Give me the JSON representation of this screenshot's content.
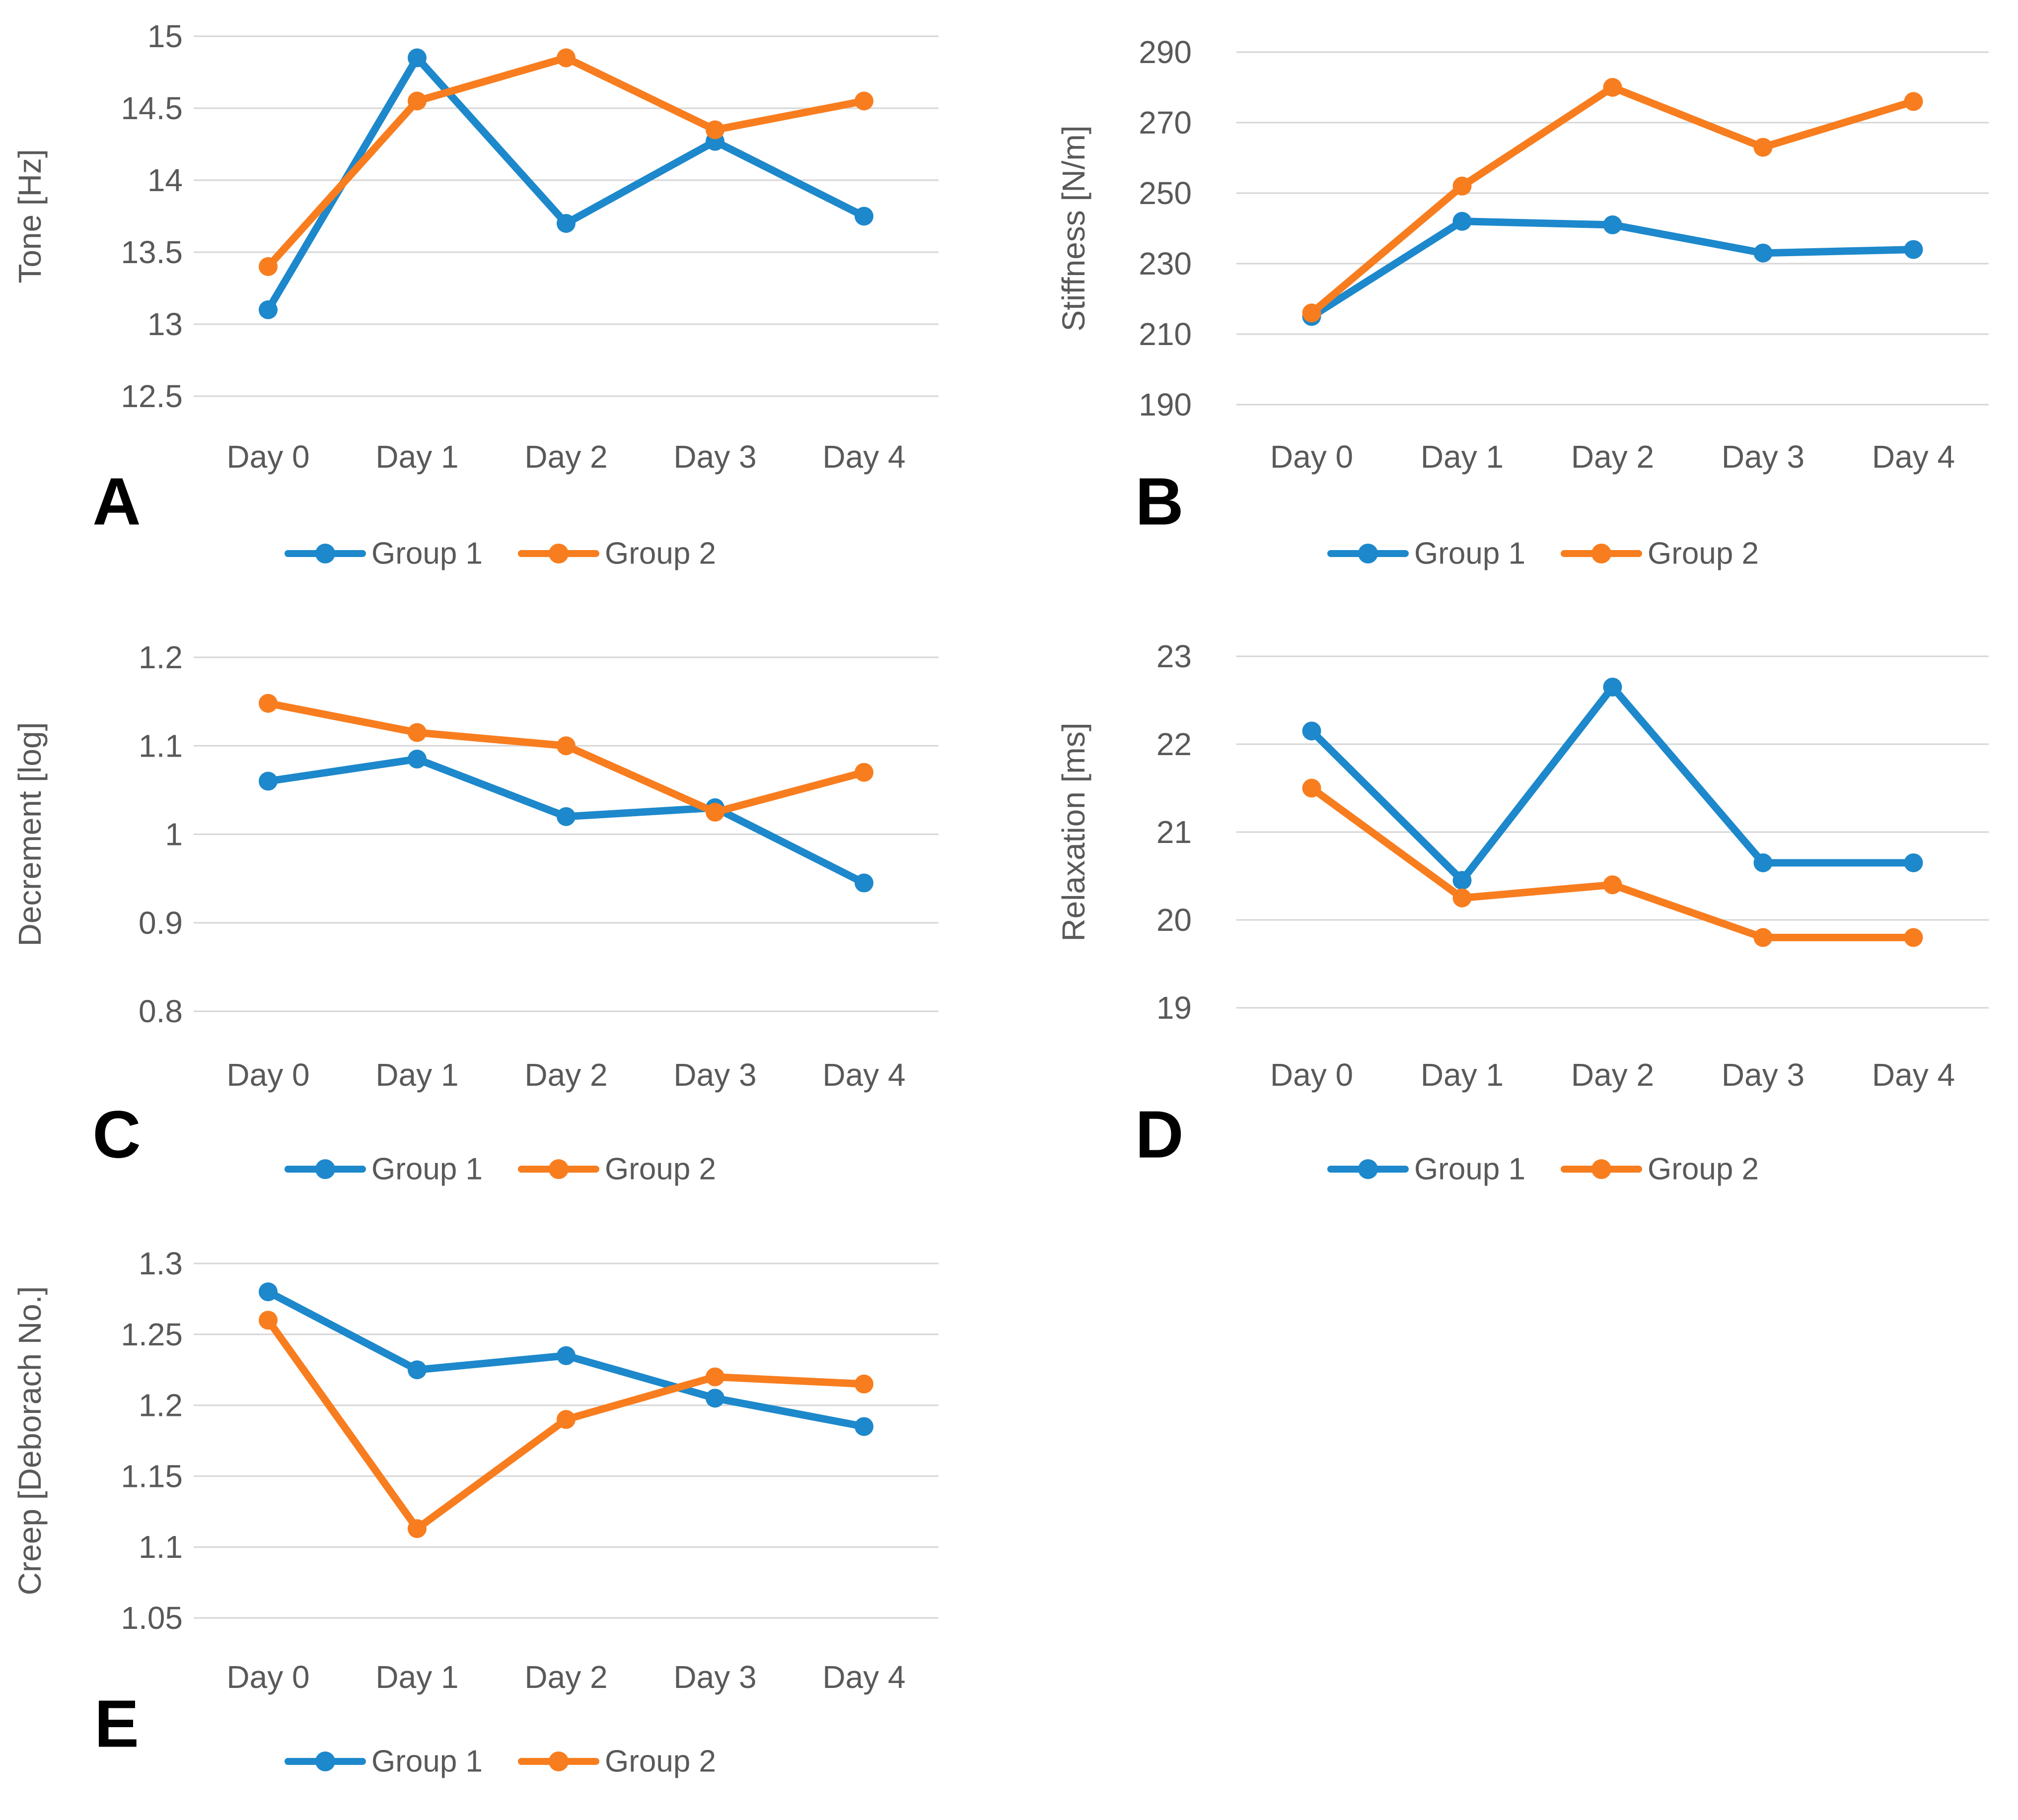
{
  "figure": {
    "background": "#ffffff",
    "text_color": "#595959",
    "grid_color": "#d6d6d6",
    "series_colors": {
      "group1": "#1d88cb",
      "group2": "#f87d1f"
    },
    "legend_labels": {
      "group1": "Group 1",
      "group2": "Group 2"
    }
  },
  "chart_data": [
    {
      "type": "line",
      "panel_label": "A",
      "ylabel": "Tone [Hz]",
      "xlabel": "",
      "categories": [
        "Day 0",
        "Day 1",
        "Day 2",
        "Day 3",
        "Day 4"
      ],
      "ytick_labels": [
        "15",
        "14.5",
        "14",
        "13.5",
        "13",
        "12.5"
      ],
      "yticks": [
        15,
        14.5,
        14,
        13.5,
        13,
        12.5
      ],
      "ylim": [
        12.5,
        15
      ],
      "grid": true,
      "legend_position": "bottom",
      "series": [
        {
          "name": "Group 1",
          "values": [
            13.1,
            14.85,
            13.7,
            14.27,
            13.75
          ]
        },
        {
          "name": "Group 2",
          "values": [
            13.4,
            14.55,
            14.85,
            14.35,
            14.55
          ]
        }
      ]
    },
    {
      "type": "line",
      "panel_label": "B",
      "ylabel": "Stiffness [N/m]",
      "xlabel": "",
      "categories": [
        "Day 0",
        "Day 1",
        "Day 2",
        "Day 3",
        "Day 4"
      ],
      "ytick_labels": [
        "290",
        "270",
        "250",
        "230",
        "210",
        "190"
      ],
      "yticks": [
        290,
        270,
        250,
        230,
        210,
        190
      ],
      "ylim": [
        190,
        290
      ],
      "grid": true,
      "legend_position": "bottom",
      "series": [
        {
          "name": "Group 1",
          "values": [
            215,
            242,
            241,
            233,
            234
          ]
        },
        {
          "name": "Group 2",
          "values": [
            216,
            252,
            280,
            263,
            276
          ]
        }
      ]
    },
    {
      "type": "line",
      "panel_label": "C",
      "ylabel": "Decrement [log]",
      "xlabel": "",
      "categories": [
        "Day 0",
        "Day 1",
        "Day 2",
        "Day 3",
        "Day 4"
      ],
      "ytick_labels": [
        "1.2",
        "1.1",
        "1",
        "0.9",
        "0.8"
      ],
      "yticks": [
        1.2,
        1.1,
        1.0,
        0.9,
        0.8
      ],
      "ylim": [
        0.8,
        1.2
      ],
      "grid": true,
      "legend_position": "bottom",
      "series": [
        {
          "name": "Group 1",
          "values": [
            1.06,
            1.085,
            1.02,
            1.03,
            0.945
          ]
        },
        {
          "name": "Group 2",
          "values": [
            1.148,
            1.115,
            1.1,
            1.025,
            1.07
          ]
        }
      ]
    },
    {
      "type": "line",
      "panel_label": "D",
      "ylabel": "Relaxation [ms]",
      "xlabel": "",
      "categories": [
        "Day 0",
        "Day 1",
        "Day 2",
        "Day 3",
        "Day 4"
      ],
      "ytick_labels": [
        "23",
        "22",
        "21",
        "20",
        "19"
      ],
      "yticks": [
        23,
        22,
        21,
        20,
        19
      ],
      "ylim": [
        19,
        23
      ],
      "grid": true,
      "legend_position": "bottom",
      "series": [
        {
          "name": "Group 1",
          "values": [
            22.15,
            20.45,
            22.65,
            20.65,
            20.65
          ]
        },
        {
          "name": "Group 2",
          "values": [
            21.5,
            20.25,
            20.4,
            19.8,
            19.8
          ]
        }
      ]
    },
    {
      "type": "line",
      "panel_label": "E",
      "ylabel": "Creep [Deborach No.]",
      "xlabel": "",
      "categories": [
        "Day 0",
        "Day 1",
        "Day 2",
        "Day 3",
        "Day 4"
      ],
      "ytick_labels": [
        "1.3",
        "1.25",
        "1.2",
        "1.15",
        "1.1",
        "1.05"
      ],
      "yticks": [
        1.3,
        1.25,
        1.2,
        1.15,
        1.1,
        1.05
      ],
      "ylim": [
        1.05,
        1.3
      ],
      "grid": true,
      "legend_position": "bottom",
      "series": [
        {
          "name": "Group 1",
          "values": [
            1.28,
            1.225,
            1.235,
            1.205,
            1.185
          ]
        },
        {
          "name": "Group 2",
          "values": [
            1.26,
            1.113,
            1.19,
            1.22,
            1.215
          ]
        }
      ]
    }
  ]
}
